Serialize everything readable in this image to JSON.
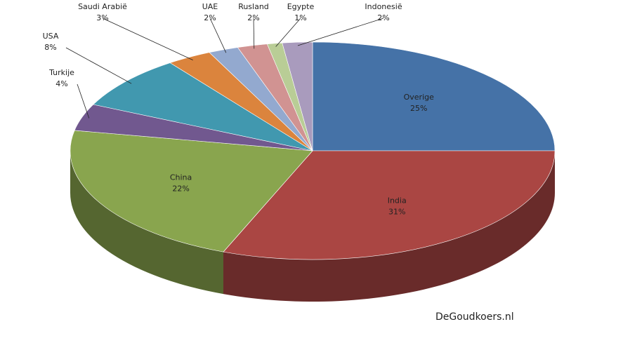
{
  "chart_data": {
    "type": "pie3d",
    "categories": [
      "Overige",
      "India",
      "China",
      "Turkije",
      "USA",
      "Saudi Arabië",
      "UAE",
      "Rusland",
      "Egypte",
      "Indonesië"
    ],
    "values": [
      25,
      31,
      22,
      4,
      8,
      3,
      2,
      2,
      1,
      2
    ],
    "value_labels": [
      "25%",
      "31%",
      "22%",
      "4%",
      "8%",
      "3%",
      "2%",
      "2%",
      "1%",
      "2%"
    ],
    "colors": [
      "#4572a7",
      "#aa4643",
      "#89a54e",
      "#71588f",
      "#4198af",
      "#db843d",
      "#93a9cf",
      "#d19392",
      "#b9cd96",
      "#a99bbd"
    ],
    "annotation": "DeGoudkoers.nl"
  }
}
